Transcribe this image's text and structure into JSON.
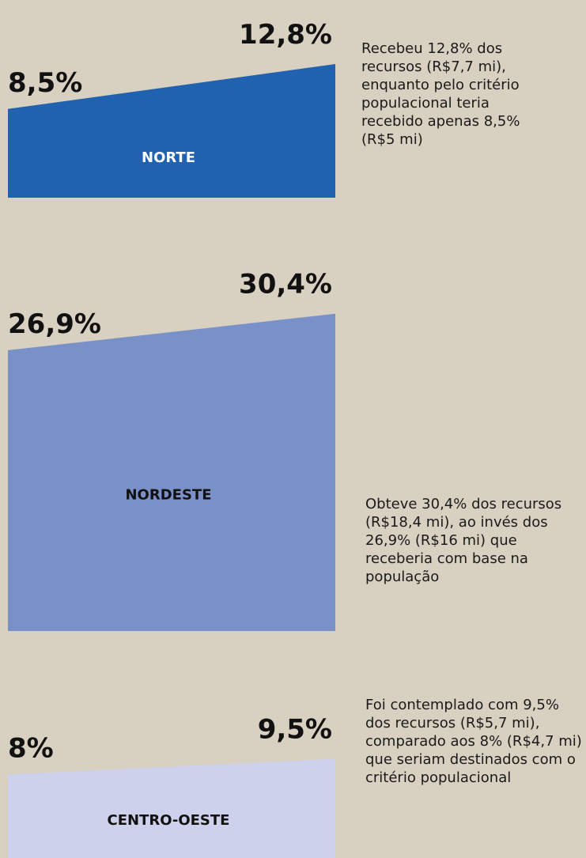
{
  "chart_data": {
    "type": "slope-area",
    "categories": [
      "NORTE",
      "NORDESTE",
      "CENTRO-OESTE"
    ],
    "colors": [
      "#2162b0",
      "#7a90c9",
      "#cdd1eb"
    ],
    "label_colors": [
      "#ffffff",
      "#111111",
      "#111111"
    ],
    "series": [
      {
        "values": [
          8.5,
          26.9,
          8
        ],
        "value_labels": [
          "8,5%",
          "26,9%",
          "8%"
        ]
      },
      {
        "values": [
          12.8,
          30.4,
          9.5
        ],
        "value_labels": [
          "12,8%",
          "30,4%",
          "9,5%"
        ]
      }
    ],
    "annotations": [
      "Recebeu 12,8% dos recursos (R$7,7 mi), enquanto pelo critério populacional teria recebido apenas 8,5% (R$5 mi)",
      "Obteve 30,4% dos recursos (R$18,4 mi), ao invés dos 26,9% (R$16 mi) que receberia com base na população",
      "Foi contemplado com 9,5% dos recursos (R$5,7 mi), comparado aos 8% (R$4,7 mi) que seriam destinados com o critério populacional"
    ]
  }
}
